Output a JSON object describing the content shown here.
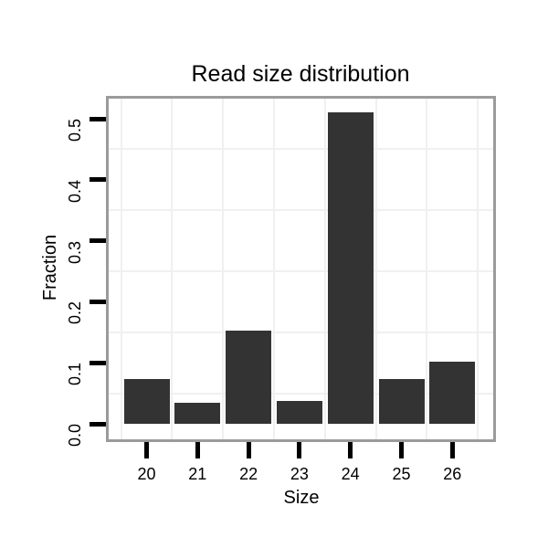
{
  "chart_data": {
    "type": "bar",
    "title": "Read size distribution",
    "xlabel": "Size",
    "ylabel": "Fraction",
    "categories": [
      "20",
      "21",
      "22",
      "23",
      "24",
      "25",
      "26"
    ],
    "values": [
      0.073,
      0.035,
      0.153,
      0.037,
      0.51,
      0.073,
      0.102
    ],
    "y_tick_labels": [
      "0.0",
      "0.1",
      "0.2",
      "0.3",
      "0.4",
      "0.5"
    ],
    "y_tick_values": [
      0,
      0.1,
      0.2,
      0.3,
      0.4,
      0.5
    ],
    "y_minor_gridline_values": [
      0.05,
      0.15,
      0.25,
      0.35,
      0.45
    ],
    "ylim": [
      -0.025,
      0.532
    ],
    "grid": "minor-gridlines-only",
    "legend": "none",
    "colors": {
      "bar": "#333333",
      "panel_border": "#9b9b9b",
      "gridline": "#f0f0f0",
      "tick": "#000000",
      "text": "#000000",
      "background": "#ffffff"
    }
  }
}
